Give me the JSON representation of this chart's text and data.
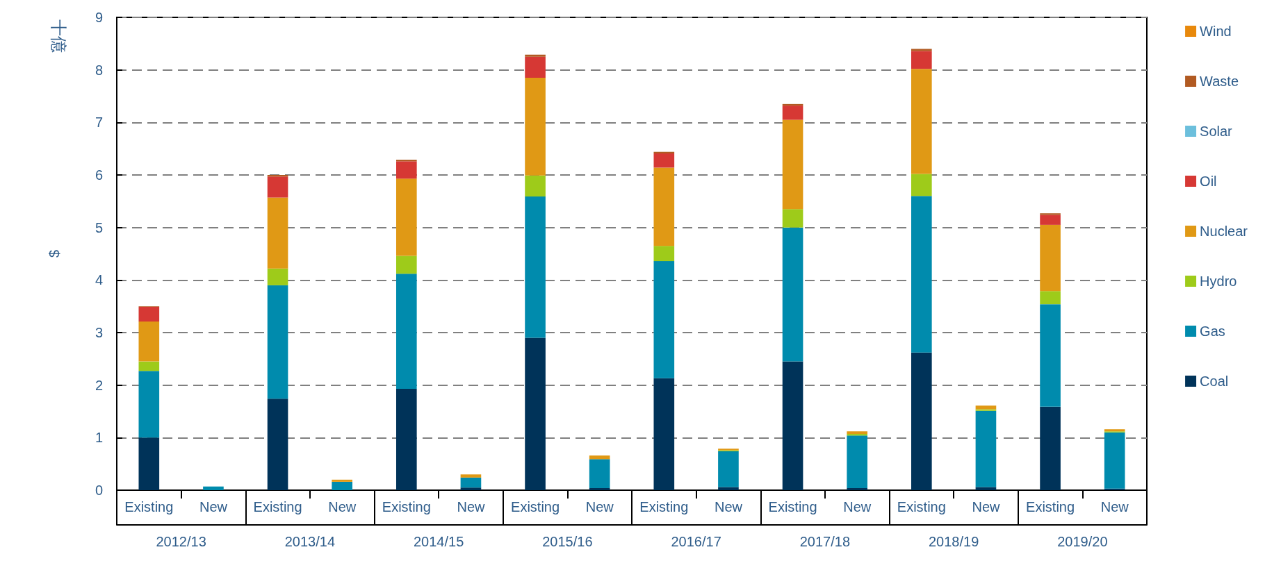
{
  "chart_data": {
    "type": "bar",
    "stacked": true,
    "ylabel": "$",
    "annotations": [
      "十億",
      "2012/13",
      "2013/14",
      "2014/15",
      "2015/16",
      "2016/17",
      "2017/18",
      "2018/19",
      "2019/20"
    ],
    "categories": [
      "Existing",
      "New",
      "Existing",
      "New",
      "Existing",
      "New",
      "Existing",
      "New",
      "Existing",
      "New",
      "Existing",
      "New",
      "Existing",
      "New",
      "Existing",
      "New"
    ],
    "series": [
      {
        "name": "Coal",
        "color": "#003359",
        "values": [
          1.0,
          0,
          1.74,
          0,
          1.93,
          0.05,
          2.9,
          0.04,
          2.13,
          0.06,
          2.45,
          0.04,
          2.62,
          0.06,
          1.59,
          0.03
        ]
      },
      {
        "name": "Gas",
        "color": "#008bad",
        "values": [
          1.27,
          0.07,
          2.16,
          0.16,
          2.19,
          0.19,
          2.69,
          0.55,
          2.23,
          0.68,
          2.55,
          1.0,
          2.98,
          1.45,
          1.95,
          1.07
        ]
      },
      {
        "name": "Hydro",
        "color": "#9ecb1a",
        "values": [
          0.18,
          0,
          0.32,
          0,
          0.34,
          0,
          0.4,
          0,
          0.29,
          0.02,
          0.35,
          0.03,
          0.42,
          0.03,
          0.25,
          0.02
        ]
      },
      {
        "name": "Nuclear",
        "color": "#e09915",
        "values": [
          0.76,
          0,
          1.35,
          0.04,
          1.47,
          0.06,
          1.86,
          0.07,
          1.49,
          0.03,
          1.7,
          0.05,
          2.0,
          0.07,
          1.26,
          0.04
        ]
      },
      {
        "name": "Oil",
        "color": "#d63834",
        "values": [
          0.28,
          0,
          0.4,
          0,
          0.33,
          0,
          0.4,
          0,
          0.27,
          0,
          0.27,
          0,
          0.34,
          0,
          0.19,
          0
        ]
      },
      {
        "name": "Solar",
        "color": "#6cbfdc",
        "values": [
          0,
          0,
          0,
          0,
          0,
          0,
          0,
          0,
          0,
          0,
          0,
          0,
          0,
          0,
          0,
          0
        ]
      },
      {
        "name": "Waste",
        "color": "#b15a22",
        "values": [
          0.01,
          0,
          0.03,
          0,
          0.03,
          0,
          0.04,
          0,
          0.03,
          0,
          0.03,
          0,
          0.04,
          0,
          0.03,
          0
        ]
      },
      {
        "name": "Wind",
        "color": "#e8890c",
        "values": [
          0,
          0,
          0,
          0,
          0,
          0,
          0,
          0,
          0,
          0,
          0,
          0,
          0,
          0,
          0,
          0
        ]
      }
    ],
    "ylim": [
      0,
      9
    ],
    "yticks": [
      0,
      1,
      2,
      3,
      4,
      5,
      6,
      7,
      8,
      9
    ],
    "grid": "y",
    "legend": "right"
  }
}
